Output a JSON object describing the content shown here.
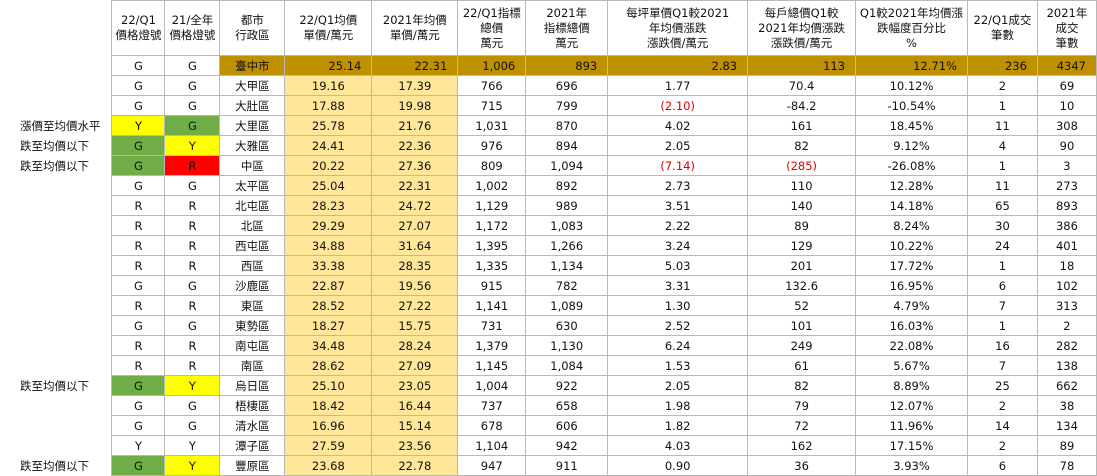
{
  "headers": [
    "",
    "22/Q1\n價格燈號",
    "21/全年\n價格燈號",
    "都市\n行政區",
    "22/Q1均價\n單價/萬元",
    "2021年均價\n單價/萬元",
    "22/Q1指標\n總價\n萬元",
    "2021年\n指標總價\n萬元",
    "每坪單價Q1較2021\n年均價漲跌\n漲跌價/萬元",
    "每戶總價Q1較\n2021年均價漲跌\n漲跌價/萬元",
    "Q1較2021年均價漲\n跌幅度百分比\n%",
    "22/Q1成交\n筆數",
    "2021年成交\n筆數"
  ],
  "total": {
    "note": "",
    "q1": "G",
    "y21": "G",
    "district": "臺中市",
    "q1_price": "25.14",
    "y21_price": "22.31",
    "q1_total": "1,006",
    "y21_total": "893",
    "unit_diff": "2.83",
    "total_diff": "113",
    "pct": "12.71%",
    "q1_count": "236",
    "y21_count": "4347"
  },
  "rows": [
    {
      "note": "",
      "q1": "G",
      "y21": "G",
      "q1_color": "G",
      "y21_color": "G",
      "district": "大甲區",
      "q1_price": "19.16",
      "y21_price": "17.39",
      "q1_total": "766",
      "y21_total": "696",
      "unit_diff": "1.77",
      "unit_neg": false,
      "total_diff": "70.4",
      "total_neg": false,
      "pct": "10.12%",
      "q1_count": "2",
      "y21_count": "69"
    },
    {
      "note": "",
      "q1": "G",
      "y21": "G",
      "q1_color": "G",
      "y21_color": "G",
      "district": "大肚區",
      "q1_price": "17.88",
      "y21_price": "19.98",
      "q1_total": "715",
      "y21_total": "799",
      "unit_diff": "(2.10)",
      "unit_neg": true,
      "total_diff": "-84.2",
      "total_neg": false,
      "pct": "-10.54%",
      "q1_count": "1",
      "y21_count": "10"
    },
    {
      "note": "漲價至均價水平",
      "q1": "Y",
      "y21": "G",
      "q1_color": "Y",
      "y21_color": "GG",
      "district": "大里區",
      "q1_price": "25.78",
      "y21_price": "21.76",
      "q1_total": "1,031",
      "y21_total": "870",
      "unit_diff": "4.02",
      "unit_neg": false,
      "total_diff": "161",
      "total_neg": false,
      "pct": "18.45%",
      "q1_count": "11",
      "y21_count": "308"
    },
    {
      "note": "跌至均價以下",
      "q1": "G",
      "y21": "Y",
      "q1_color": "GG",
      "y21_color": "Y",
      "district": "大雅區",
      "q1_price": "24.41",
      "y21_price": "22.36",
      "q1_total": "976",
      "y21_total": "894",
      "unit_diff": "2.05",
      "unit_neg": false,
      "total_diff": "82",
      "total_neg": false,
      "pct": "9.12%",
      "q1_count": "4",
      "y21_count": "90"
    },
    {
      "note": "跌至均價以下",
      "q1": "G",
      "y21": "R",
      "q1_color": "GG",
      "y21_color": "R",
      "district": "中區",
      "q1_price": "20.22",
      "y21_price": "27.36",
      "q1_total": "809",
      "y21_total": "1,094",
      "unit_diff": "(7.14)",
      "unit_neg": true,
      "total_diff": "(285)",
      "total_neg": true,
      "pct": "-26.08%",
      "q1_count": "1",
      "y21_count": "3"
    },
    {
      "note": "",
      "q1": "G",
      "y21": "G",
      "q1_color": "G",
      "y21_color": "G",
      "district": "太平區",
      "q1_price": "25.04",
      "y21_price": "22.31",
      "q1_total": "1,002",
      "y21_total": "892",
      "unit_diff": "2.73",
      "unit_neg": false,
      "total_diff": "110",
      "total_neg": false,
      "pct": "12.28%",
      "q1_count": "11",
      "y21_count": "273"
    },
    {
      "note": "",
      "q1": "R",
      "y21": "R",
      "q1_color": "G",
      "y21_color": "G",
      "district": "北屯區",
      "q1_price": "28.23",
      "y21_price": "24.72",
      "q1_total": "1,129",
      "y21_total": "989",
      "unit_diff": "3.51",
      "unit_neg": false,
      "total_diff": "140",
      "total_neg": false,
      "pct": "14.18%",
      "q1_count": "65",
      "y21_count": "893"
    },
    {
      "note": "",
      "q1": "R",
      "y21": "R",
      "q1_color": "G",
      "y21_color": "G",
      "district": "北區",
      "q1_price": "29.29",
      "y21_price": "27.07",
      "q1_total": "1,172",
      "y21_total": "1,083",
      "unit_diff": "2.22",
      "unit_neg": false,
      "total_diff": "89",
      "total_neg": false,
      "pct": "8.24%",
      "q1_count": "30",
      "y21_count": "386"
    },
    {
      "note": "",
      "q1": "R",
      "y21": "R",
      "q1_color": "G",
      "y21_color": "G",
      "district": "西屯區",
      "q1_price": "34.88",
      "y21_price": "31.64",
      "q1_total": "1,395",
      "y21_total": "1,266",
      "unit_diff": "3.24",
      "unit_neg": false,
      "total_diff": "129",
      "total_neg": false,
      "pct": "10.22%",
      "q1_count": "24",
      "y21_count": "401"
    },
    {
      "note": "",
      "q1": "R",
      "y21": "R",
      "q1_color": "G",
      "y21_color": "G",
      "district": "西區",
      "q1_price": "33.38",
      "y21_price": "28.35",
      "q1_total": "1,335",
      "y21_total": "1,134",
      "unit_diff": "5.03",
      "unit_neg": false,
      "total_diff": "201",
      "total_neg": false,
      "pct": "17.72%",
      "q1_count": "1",
      "y21_count": "18"
    },
    {
      "note": "",
      "q1": "G",
      "y21": "G",
      "q1_color": "G",
      "y21_color": "G",
      "district": "沙鹿區",
      "q1_price": "22.87",
      "y21_price": "19.56",
      "q1_total": "915",
      "y21_total": "782",
      "unit_diff": "3.31",
      "unit_neg": false,
      "total_diff": "132.6",
      "total_neg": false,
      "pct": "16.95%",
      "q1_count": "6",
      "y21_count": "102"
    },
    {
      "note": "",
      "q1": "R",
      "y21": "R",
      "q1_color": "G",
      "y21_color": "G",
      "district": "東區",
      "q1_price": "28.52",
      "y21_price": "27.22",
      "q1_total": "1,141",
      "y21_total": "1,089",
      "unit_diff": "1.30",
      "unit_neg": false,
      "total_diff": "52",
      "total_neg": false,
      "pct": "4.79%",
      "q1_count": "7",
      "y21_count": "313"
    },
    {
      "note": "",
      "q1": "G",
      "y21": "G",
      "q1_color": "G",
      "y21_color": "G",
      "district": "東勢區",
      "q1_price": "18.27",
      "y21_price": "15.75",
      "q1_total": "731",
      "y21_total": "630",
      "unit_diff": "2.52",
      "unit_neg": false,
      "total_diff": "101",
      "total_neg": false,
      "pct": "16.03%",
      "q1_count": "1",
      "y21_count": "2"
    },
    {
      "note": "",
      "q1": "R",
      "y21": "R",
      "q1_color": "G",
      "y21_color": "G",
      "district": "南屯區",
      "q1_price": "34.48",
      "y21_price": "28.24",
      "q1_total": "1,379",
      "y21_total": "1,130",
      "unit_diff": "6.24",
      "unit_neg": false,
      "total_diff": "249",
      "total_neg": false,
      "pct": "22.08%",
      "q1_count": "16",
      "y21_count": "282"
    },
    {
      "note": "",
      "q1": "R",
      "y21": "R",
      "q1_color": "G",
      "y21_color": "G",
      "district": "南區",
      "q1_price": "28.62",
      "y21_price": "27.09",
      "q1_total": "1,145",
      "y21_total": "1,084",
      "unit_diff": "1.53",
      "unit_neg": false,
      "total_diff": "61",
      "total_neg": false,
      "pct": "5.67%",
      "q1_count": "7",
      "y21_count": "138"
    },
    {
      "note": "跌至均價以下",
      "q1": "G",
      "y21": "Y",
      "q1_color": "GG",
      "y21_color": "Y",
      "district": "烏日區",
      "q1_price": "25.10",
      "y21_price": "23.05",
      "q1_total": "1,004",
      "y21_total": "922",
      "unit_diff": "2.05",
      "unit_neg": false,
      "total_diff": "82",
      "total_neg": false,
      "pct": "8.89%",
      "q1_count": "25",
      "y21_count": "662"
    },
    {
      "note": "",
      "q1": "G",
      "y21": "G",
      "q1_color": "G",
      "y21_color": "G",
      "district": "梧棲區",
      "q1_price": "18.42",
      "y21_price": "16.44",
      "q1_total": "737",
      "y21_total": "658",
      "unit_diff": "1.98",
      "unit_neg": false,
      "total_diff": "79",
      "total_neg": false,
      "pct": "12.07%",
      "q1_count": "2",
      "y21_count": "38"
    },
    {
      "note": "",
      "q1": "G",
      "y21": "G",
      "q1_color": "G",
      "y21_color": "G",
      "district": "清水區",
      "q1_price": "16.96",
      "y21_price": "15.14",
      "q1_total": "678",
      "y21_total": "606",
      "unit_diff": "1.82",
      "unit_neg": false,
      "total_diff": "72",
      "total_neg": false,
      "pct": "11.96%",
      "q1_count": "14",
      "y21_count": "134"
    },
    {
      "note": "",
      "q1": "Y",
      "y21": "Y",
      "q1_color": "G",
      "y21_color": "G",
      "district": "潭子區",
      "q1_price": "27.59",
      "y21_price": "23.56",
      "q1_total": "1,104",
      "y21_total": "942",
      "unit_diff": "4.03",
      "unit_neg": false,
      "total_diff": "162",
      "total_neg": false,
      "pct": "17.15%",
      "q1_count": "2",
      "y21_count": "89"
    },
    {
      "note": "跌至均價以下",
      "q1": "G",
      "y21": "Y",
      "q1_color": "GG",
      "y21_color": "Y",
      "district": "豐原區",
      "q1_price": "23.68",
      "y21_price": "22.78",
      "q1_total": "947",
      "y21_total": "911",
      "unit_diff": "0.90",
      "unit_neg": false,
      "total_diff": "36",
      "total_neg": false,
      "pct": "3.93%",
      "q1_count": "6",
      "y21_count": "78"
    }
  ],
  "colors": {
    "Y": "#ffff00",
    "R": "#ff0000",
    "GG": "#70ad47",
    "G": "#ffffff",
    "price": "#ffe699",
    "total_row": "#bf9000",
    "negative": "#e00000"
  }
}
